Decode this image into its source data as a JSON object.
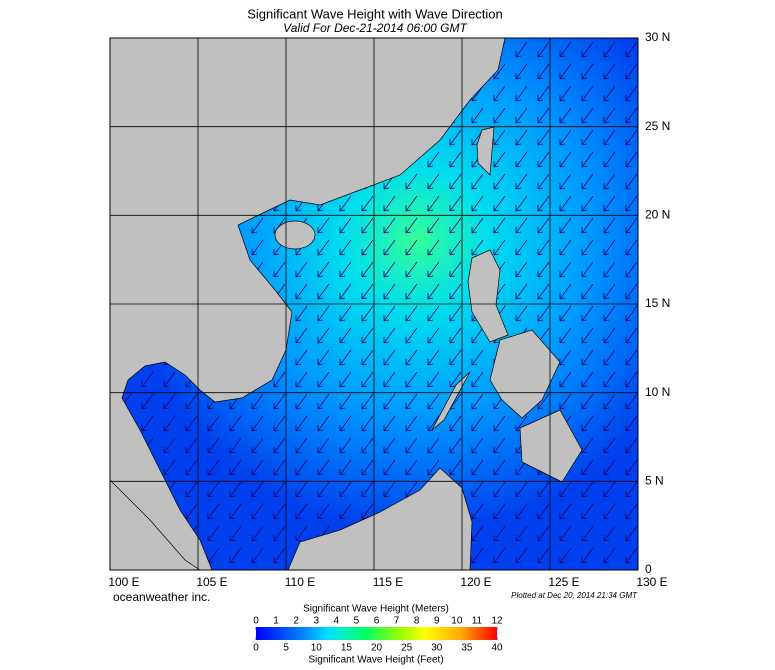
{
  "title": "Significant Wave Height with Wave Direction",
  "subtitle": "Valid For Dec-21-2014 06:00 GMT",
  "map": {
    "lon_lim": [
      100,
      130
    ],
    "lat_lim": [
      0,
      30
    ],
    "lon_ticks": [
      {
        "value": 100,
        "label": "100 E"
      },
      {
        "value": 105,
        "label": "105 E"
      },
      {
        "value": 110,
        "label": "110 E"
      },
      {
        "value": 115,
        "label": "115 E"
      },
      {
        "value": 120,
        "label": "120 E"
      },
      {
        "value": 125,
        "label": "125 E"
      },
      {
        "value": 130,
        "label": "130 E"
      }
    ],
    "lat_ticks": [
      {
        "value": 0,
        "label": "0"
      },
      {
        "value": 5,
        "label": "5 N"
      },
      {
        "value": 10,
        "label": "10 N"
      },
      {
        "value": 15,
        "label": "15 N"
      },
      {
        "value": 20,
        "label": "20 N"
      },
      {
        "value": 25,
        "label": "25 N"
      },
      {
        "value": 30,
        "label": "30 N"
      }
    ]
  },
  "credit": "oceanweather inc.",
  "plotted": "Plotted at Dec 20, 2014 21:34 GMT",
  "colorbar": {
    "meters_title": "Significant Wave Height (Meters)",
    "meters_lim": [
      0,
      12
    ],
    "meters_ticks": [
      0,
      1,
      2,
      3,
      4,
      5,
      6,
      7,
      8,
      9,
      10,
      11,
      12
    ],
    "feet_title": "Significant Wave Height (Feet)",
    "feet_lim": [
      0,
      40
    ],
    "feet_ticks": [
      0,
      5,
      10,
      15,
      20,
      25,
      30,
      35,
      40
    ]
  }
}
